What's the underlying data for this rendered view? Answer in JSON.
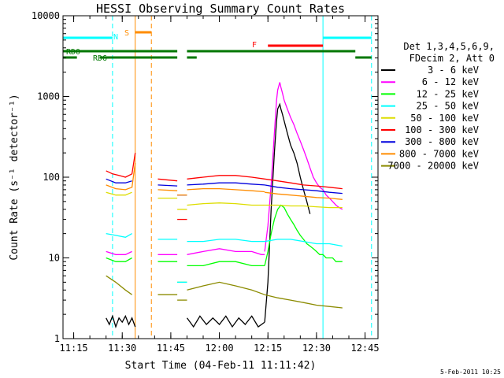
{
  "chart_data": {
    "type": "line",
    "title": "HESSI Observing Summary Count Rates",
    "xlabel": "Start Time (04-Feb-11 11:11:42)",
    "ylabel": "Count Rate (s⁻¹ detector⁻¹)",
    "y_scale": "log",
    "ylim": [
      1,
      10000
    ],
    "xlim": [
      "11:11:42",
      "12:49:00"
    ],
    "x_ticks": [
      "11:15",
      "11:30",
      "11:45",
      "12:00",
      "12:15",
      "12:30",
      "12:45"
    ],
    "y_ticks": [
      "1",
      "10",
      "100",
      "1000",
      "10000"
    ],
    "legend_placement": "right",
    "legend_header": [
      "Det 1,3,4,5,6,9,",
      "FDecim 2, Att 0"
    ],
    "timestamp": "5-Feb-2011 10:25",
    "series": [
      {
        "name": "3 - 6 keV",
        "color": "#000000",
        "segments": [
          {
            "x": [
              "11:25",
              "11:26",
              "11:27",
              "11:28",
              "11:29",
              "11:30",
              "11:31",
              "11:32",
              "11:33",
              "11:34"
            ],
            "y": [
              1.8,
              1.5,
              1.9,
              1.4,
              1.8,
              1.6,
              1.9,
              1.5,
              1.8,
              1.4
            ]
          },
          {
            "x": [
              "11:50",
              "11:52",
              "11:54",
              "11:56",
              "11:58",
              "12:00",
              "12:02",
              "12:04",
              "12:06",
              "12:08",
              "12:10",
              "12:12",
              "12:14"
            ],
            "y": [
              1.8,
              1.4,
              1.9,
              1.5,
              1.8,
              1.5,
              1.9,
              1.4,
              1.8,
              1.5,
              1.9,
              1.4,
              1.6
            ]
          },
          {
            "x": [
              "12:14",
              "12:15",
              "12:16",
              "12:17",
              "12:17:40",
              "12:18",
              "12:18:40",
              "12:19",
              "12:19:30",
              "12:20",
              "12:21",
              "12:22",
              "12:23",
              "12:24",
              "12:25",
              "12:26",
              "12:27",
              "12:28"
            ],
            "y": [
              1.6,
              5,
              40,
              200,
              500,
              700,
              800,
              700,
              600,
              500,
              350,
              250,
              200,
              150,
              100,
              70,
              50,
              35
            ]
          }
        ]
      },
      {
        "name": "6 - 12 keV",
        "color": "#ff00ff",
        "segments": [
          {
            "x": [
              "11:25",
              "11:28",
              "11:31",
              "11:33"
            ],
            "y": [
              12,
              11,
              11,
              12
            ]
          },
          {
            "x": [
              "11:41",
              "11:47"
            ],
            "y": [
              11,
              11
            ]
          },
          {
            "x": [
              "11:50",
              "11:55",
              "12:00",
              "12:05",
              "12:10",
              "12:13",
              "12:14"
            ],
            "y": [
              11,
              12,
              13,
              12,
              12,
              11,
              11
            ]
          },
          {
            "x": [
              "12:14",
              "12:15",
              "12:16",
              "12:17",
              "12:17:40",
              "12:18",
              "12:18:40",
              "12:19",
              "12:19:30",
              "12:20",
              "12:21",
              "12:22",
              "12:23",
              "12:24",
              "12:25",
              "12:26",
              "12:27",
              "12:28",
              "12:29",
              "12:30",
              "12:31",
              "12:32",
              "12:33",
              "12:34",
              "12:35",
              "12:36",
              "12:37",
              "12:38"
            ],
            "y": [
              12,
              25,
              80,
              350,
              900,
              1200,
              1500,
              1300,
              1100,
              900,
              700,
              550,
              450,
              350,
              280,
              220,
              170,
              130,
              100,
              85,
              75,
              70,
              60,
              55,
              50,
              45,
              42,
              40
            ]
          }
        ]
      },
      {
        "name": "12 - 25 keV",
        "color": "#00ff00",
        "segments": [
          {
            "x": [
              "11:25",
              "11:28",
              "11:31",
              "11:33"
            ],
            "y": [
              10,
              9,
              9,
              10
            ]
          },
          {
            "x": [
              "11:41",
              "11:47"
            ],
            "y": [
              9,
              9
            ]
          },
          {
            "x": [
              "11:47",
              "11:50"
            ],
            "y": [
              5,
              5
            ]
          },
          {
            "x": [
              "11:50",
              "11:55",
              "12:00",
              "12:05",
              "12:10",
              "12:13",
              "12:14"
            ],
            "y": [
              8,
              8,
              9,
              9,
              8,
              8,
              8
            ]
          },
          {
            "x": [
              "12:14",
              "12:15",
              "12:16",
              "12:17",
              "12:18",
              "12:19",
              "12:20",
              "12:21",
              "12:22",
              "12:23",
              "12:24",
              "12:25",
              "12:26",
              "12:27",
              "12:28",
              "12:29",
              "12:30",
              "12:31",
              "12:32",
              "12:33",
              "12:34",
              "12:35",
              "12:36",
              "12:37",
              "12:38"
            ],
            "y": [
              8,
              12,
              20,
              30,
              40,
              45,
              42,
              35,
              30,
              26,
              22,
              19,
              17,
              15,
              14,
              13,
              12,
              11,
              11,
              10,
              10,
              10,
              9,
              9,
              9
            ]
          }
        ]
      },
      {
        "name": "25 - 50 keV",
        "color": "#00ffff",
        "segments": [
          {
            "x": [
              "11:25",
              "11:28",
              "11:31",
              "11:33"
            ],
            "y": [
              20,
              19,
              18,
              20
            ]
          },
          {
            "x": [
              "11:41",
              "11:47"
            ],
            "y": [
              17,
              17
            ]
          },
          {
            "x": [
              "11:47",
              "11:50"
            ],
            "y": [
              5,
              5
            ]
          },
          {
            "x": [
              "11:50",
              "11:55",
              "12:00",
              "12:05",
              "12:10",
              "12:13",
              "12:14"
            ],
            "y": [
              16,
              16,
              17,
              17,
              16,
              16,
              16
            ]
          },
          {
            "x": [
              "12:14",
              "12:18",
              "12:22",
              "12:26",
              "12:30",
              "12:34",
              "12:38"
            ],
            "y": [
              16,
              17,
              17,
              16,
              15,
              15,
              14
            ]
          }
        ]
      },
      {
        "name": "50 - 100 keV",
        "color": "#dddd00",
        "segments": [
          {
            "x": [
              "11:25",
              "11:28",
              "11:31",
              "11:33"
            ],
            "y": [
              65,
              60,
              60,
              65
            ]
          },
          {
            "x": [
              "11:41",
              "11:47"
            ],
            "y": [
              55,
              55
            ]
          },
          {
            "x": [
              "11:47",
              "11:50"
            ],
            "y": [
              40,
              40
            ]
          },
          {
            "x": [
              "11:50",
              "11:55",
              "12:00",
              "12:05",
              "12:10",
              "12:13",
              "12:14"
            ],
            "y": [
              45,
              47,
              48,
              47,
              45,
              45,
              45
            ]
          },
          {
            "x": [
              "12:14",
              "12:18",
              "12:22",
              "12:26",
              "12:30",
              "12:34",
              "12:38"
            ],
            "y": [
              45,
              45,
              44,
              44,
              43,
              42,
              42
            ]
          }
        ]
      },
      {
        "name": "100 - 300 keV",
        "color": "#ff0000",
        "segments": [
          {
            "x": [
              "11:25",
              "11:27",
              "11:29",
              "11:31",
              "11:33",
              "11:34"
            ],
            "y": [
              120,
              110,
              105,
              100,
              110,
              200
            ]
          },
          {
            "x": [
              "11:41",
              "11:47"
            ],
            "y": [
              95,
              90
            ]
          },
          {
            "x": [
              "11:47",
              "11:50"
            ],
            "y": [
              30,
              30
            ]
          },
          {
            "x": [
              "11:50",
              "11:55",
              "12:00",
              "12:05",
              "12:10",
              "12:14"
            ],
            "y": [
              95,
              100,
              105,
              105,
              100,
              95
            ]
          },
          {
            "x": [
              "12:14",
              "12:18",
              "12:22",
              "12:26",
              "12:30",
              "12:34",
              "12:38"
            ],
            "y": [
              95,
              90,
              85,
              80,
              78,
              75,
              72
            ]
          }
        ]
      },
      {
        "name": "300 - 800 keV",
        "color": "#0000dd",
        "segments": [
          {
            "x": [
              "11:25",
              "11:28",
              "11:31",
              "11:33"
            ],
            "y": [
              95,
              85,
              85,
              90
            ]
          },
          {
            "x": [
              "11:41",
              "11:47"
            ],
            "y": [
              80,
              78
            ]
          },
          {
            "x": [
              "11:47",
              "11:50"
            ],
            "y": [
              60,
              60
            ]
          },
          {
            "x": [
              "11:50",
              "11:55",
              "12:00",
              "12:05",
              "12:10",
              "12:14"
            ],
            "y": [
              80,
              82,
              85,
              85,
              82,
              80
            ]
          },
          {
            "x": [
              "12:14",
              "12:18",
              "12:22",
              "12:26",
              "12:30",
              "12:34",
              "12:38"
            ],
            "y": [
              80,
              75,
              72,
              70,
              68,
              65,
              63
            ]
          }
        ]
      },
      {
        "name": "800 - 7000 keV",
        "color": "#ff8c00",
        "segments": [
          {
            "x": [
              "11:25",
              "11:28",
              "11:31",
              "11:33",
              "11:34"
            ],
            "y": [
              80,
              72,
              70,
              75,
              150
            ]
          },
          {
            "x": [
              "11:41",
              "11:47"
            ],
            "y": [
              70,
              68
            ]
          },
          {
            "x": [
              "11:47",
              "11:50"
            ],
            "y": [
              60,
              60
            ]
          },
          {
            "x": [
              "11:50",
              "11:55",
              "12:00",
              "12:05",
              "12:10",
              "12:14"
            ],
            "y": [
              70,
              72,
              72,
              70,
              68,
              66
            ]
          },
          {
            "x": [
              "12:14",
              "12:18",
              "12:22",
              "12:26",
              "12:30",
              "12:34",
              "12:38"
            ],
            "y": [
              65,
              62,
              60,
              58,
              56,
              55,
              53
            ]
          }
        ]
      },
      {
        "name": "7000 - 20000 keV",
        "color": "#8b8b00",
        "segments": [
          {
            "x": [
              "11:25",
              "11:28",
              "11:31",
              "11:33"
            ],
            "y": [
              6,
              5,
              4,
              3.5
            ]
          },
          {
            "x": [
              "11:41",
              "11:47"
            ],
            "y": [
              3.5,
              3.5
            ]
          },
          {
            "x": [
              "11:47",
              "11:50"
            ],
            "y": [
              3,
              3
            ]
          },
          {
            "x": [
              "11:50",
              "11:55",
              "12:00",
              "12:05",
              "12:10",
              "12:14"
            ],
            "y": [
              4,
              4.5,
              5,
              4.5,
              4,
              3.5
            ]
          },
          {
            "x": [
              "12:14",
              "12:18",
              "12:22",
              "12:26",
              "12:30",
              "12:34",
              "12:38"
            ],
            "y": [
              3.5,
              3.2,
              3,
              2.8,
              2.6,
              2.5,
              2.4
            ]
          }
        ]
      }
    ],
    "flag_bars": [
      {
        "label": "N",
        "color": "#00ffff",
        "spans": [
          [
            "11:11:42",
            "11:27"
          ],
          [
            "12:32",
            "12:47"
          ]
        ]
      },
      {
        "label": "S",
        "color": "#ff8c00",
        "spans": [
          [
            "11:34",
            "11:39"
          ]
        ]
      },
      {
        "label": "F",
        "color": "#ff0000",
        "spans": [
          [
            "12:15",
            "12:32"
          ]
        ]
      },
      {
        "label": "RD0",
        "color": "#007700",
        "spans": [
          [
            "11:11:42",
            "11:47"
          ],
          [
            "11:50",
            "12:42"
          ]
        ]
      },
      {
        "label": "RD6",
        "color": "#007700",
        "spans": [
          [
            "11:11:42",
            "11:16"
          ],
          [
            "11:23",
            "11:47"
          ],
          [
            "11:50",
            "11:53"
          ],
          [
            "12:42",
            "12:47"
          ]
        ]
      }
    ],
    "vertical_markers": [
      {
        "time": "11:11:42",
        "color": "#00ffff",
        "style": "solid"
      },
      {
        "time": "11:27",
        "color": "#00ffff",
        "style": "dashed"
      },
      {
        "time": "11:34",
        "color": "#ff8c00",
        "style": "solid"
      },
      {
        "time": "11:39",
        "color": "#ff8c00",
        "style": "dashed"
      },
      {
        "time": "12:32",
        "color": "#00ffff",
        "style": "solid"
      },
      {
        "time": "12:47",
        "color": "#00ffff",
        "style": "dashed"
      }
    ]
  }
}
